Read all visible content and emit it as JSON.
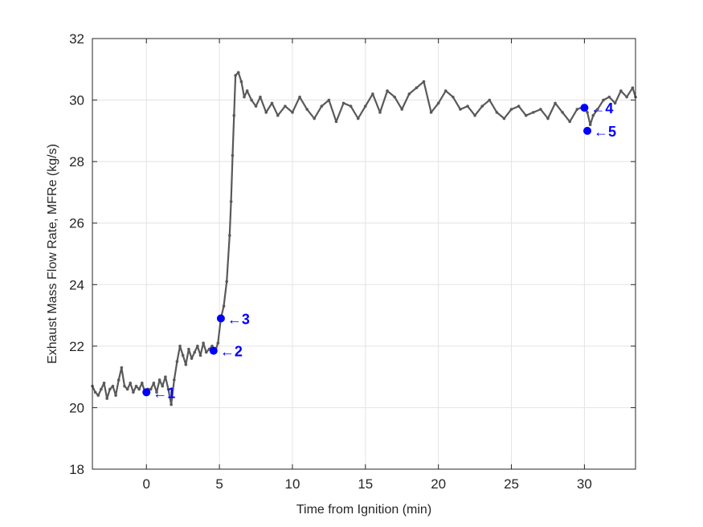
{
  "chart_data": {
    "type": "line",
    "title": "",
    "xlabel": "Time from Ignition (min)",
    "ylabel": "Exhaust Mass Flow Rate, MFRe (kg/s)",
    "xlim": [
      -3.7,
      33.5
    ],
    "ylim": [
      18,
      32
    ],
    "xticks": [
      0,
      5,
      10,
      15,
      20,
      25,
      30
    ],
    "yticks": [
      18,
      20,
      22,
      24,
      26,
      28,
      30,
      32
    ],
    "grid": true,
    "colors": {
      "series": "#595959",
      "marker": "#0000ff",
      "grid": "#e3e3e3",
      "axis": "#262626"
    },
    "series": [
      {
        "x": [
          -3.7,
          -3.5,
          -3.3,
          -3.1,
          -2.9,
          -2.7,
          -2.5,
          -2.3,
          -2.1,
          -1.9,
          -1.7,
          -1.5,
          -1.3,
          -1.1,
          -0.9,
          -0.7,
          -0.5,
          -0.3,
          -0.1,
          0.1,
          0.3,
          0.5,
          0.7,
          0.9,
          1.1,
          1.3,
          1.5,
          1.7,
          1.9,
          2.1,
          2.3,
          2.5,
          2.7,
          2.9,
          3.1,
          3.3,
          3.5,
          3.7,
          3.9,
          4.1,
          4.3,
          4.5,
          4.7,
          4.9,
          5.1,
          5.3,
          5.5,
          5.7,
          5.8,
          5.9,
          6.0,
          6.1,
          6.3,
          6.5,
          6.7,
          6.9,
          7.2,
          7.5,
          7.8,
          8.2,
          8.6,
          9.0,
          9.5,
          10.0,
          10.5,
          11.0,
          11.5,
          12.0,
          12.5,
          13.0,
          13.5,
          14.0,
          14.5,
          15.0,
          15.5,
          16.0,
          16.5,
          17.0,
          17.5,
          18.0,
          18.5,
          19.0,
          19.5,
          20.0,
          20.5,
          21.0,
          21.5,
          22.0,
          22.5,
          23.0,
          23.5,
          24.0,
          24.5,
          25.0,
          25.5,
          26.0,
          26.5,
          27.0,
          27.5,
          28.0,
          28.5,
          29.0,
          29.5,
          30.0,
          30.2,
          30.4,
          30.6,
          30.9,
          31.3,
          31.7,
          32.1,
          32.5,
          32.9,
          33.3,
          33.5
        ],
        "y": [
          20.7,
          20.5,
          20.4,
          20.6,
          20.8,
          20.3,
          20.6,
          20.7,
          20.4,
          20.9,
          21.3,
          20.7,
          20.6,
          20.8,
          20.5,
          20.7,
          20.6,
          20.8,
          20.5,
          20.6,
          20.6,
          20.8,
          20.5,
          20.9,
          20.7,
          21.0,
          20.6,
          20.1,
          20.9,
          21.5,
          22.0,
          21.7,
          21.4,
          21.9,
          21.6,
          21.8,
          22.0,
          21.7,
          22.1,
          21.8,
          21.9,
          22.0,
          21.8,
          22.1,
          22.9,
          23.3,
          24.1,
          25.6,
          26.7,
          28.2,
          29.5,
          30.8,
          30.9,
          30.6,
          30.1,
          30.3,
          30.0,
          29.8,
          30.1,
          29.6,
          29.9,
          29.5,
          29.8,
          29.6,
          30.1,
          29.7,
          29.4,
          29.8,
          30.0,
          29.3,
          29.9,
          29.8,
          29.4,
          29.8,
          30.2,
          29.6,
          30.3,
          30.1,
          29.7,
          30.2,
          30.4,
          30.6,
          29.6,
          29.9,
          30.3,
          30.1,
          29.7,
          29.8,
          29.5,
          29.8,
          30.0,
          29.6,
          29.4,
          29.7,
          29.8,
          29.5,
          29.6,
          29.7,
          29.4,
          29.9,
          29.6,
          29.3,
          29.7,
          29.8,
          29.6,
          29.2,
          29.5,
          29.7,
          30.0,
          30.1,
          29.9,
          30.3,
          30.1,
          30.4,
          30.1
        ]
      }
    ],
    "points": [
      {
        "label": "1",
        "x": 0.0,
        "y": 20.5
      },
      {
        "label": "2",
        "x": 4.6,
        "y": 21.85
      },
      {
        "label": "3",
        "x": 5.1,
        "y": 22.9
      },
      {
        "label": "4",
        "x": 30.0,
        "y": 29.75
      },
      {
        "label": "5",
        "x": 30.2,
        "y": 29.0
      }
    ]
  }
}
